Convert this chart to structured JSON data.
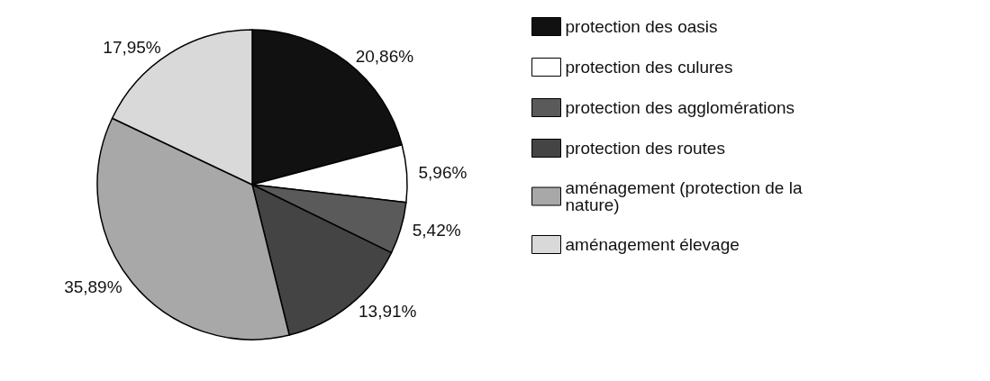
{
  "chart_data": {
    "type": "pie",
    "categories": [
      "protection des oasis",
      "protection des culures",
      "protection des agglomérations",
      "protection des routes",
      "aménagement (protection de la nature)",
      "aménagement élevage"
    ],
    "values": [
      20.86,
      5.96,
      5.42,
      13.91,
      35.89,
      17.95
    ],
    "value_labels": [
      "20,86%",
      "5,96%",
      "5,42%",
      "13,91%",
      "35,89%",
      "17,95%"
    ],
    "colors": [
      "#111111",
      "#ffffff",
      "#5a5a5a",
      "#444444",
      "#a8a8a8",
      "#d9d9d9"
    ],
    "legend": "right"
  }
}
